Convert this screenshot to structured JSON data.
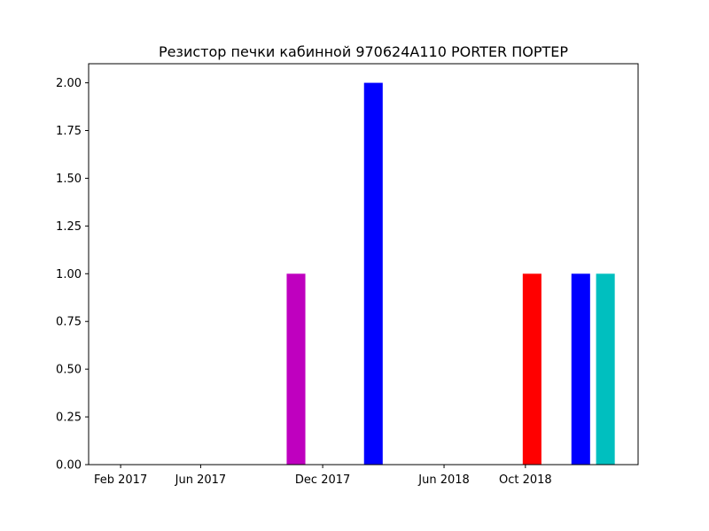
{
  "chart_data": {
    "type": "bar",
    "title": "Резистор печки кабинной 970624A110 PORTER ПОРТЕР",
    "xlabel": "",
    "ylabel": "",
    "x_axis_type": "date",
    "xlim": [
      "2016-12-15",
      "2019-03-19"
    ],
    "ylim": [
      0,
      2.1
    ],
    "x_ticks": [
      {
        "date": "2017-02-01",
        "label": "Feb 2017"
      },
      {
        "date": "2017-06-01",
        "label": "Jun 2017"
      },
      {
        "date": "2017-12-01",
        "label": "Dec 2017"
      },
      {
        "date": "2018-06-01",
        "label": "Jun 2018"
      },
      {
        "date": "2018-10-01",
        "label": "Oct 2018"
      }
    ],
    "y_ticks": [
      "0.00",
      "0.25",
      "0.50",
      "0.75",
      "1.00",
      "1.25",
      "1.50",
      "1.75",
      "2.00"
    ],
    "bars": [
      {
        "date": "2017-10-22",
        "value": 1,
        "color": "#bf00bf"
      },
      {
        "date": "2018-02-15",
        "value": 2,
        "color": "#0000ff"
      },
      {
        "date": "2018-10-11",
        "value": 1,
        "color": "#ff0000"
      },
      {
        "date": "2018-12-23",
        "value": 1,
        "color": "#0000ff"
      },
      {
        "date": "2019-01-29",
        "value": 1,
        "color": "#00bfbf"
      }
    ],
    "bar_width_days": 28,
    "grid": false,
    "legend": "none"
  }
}
